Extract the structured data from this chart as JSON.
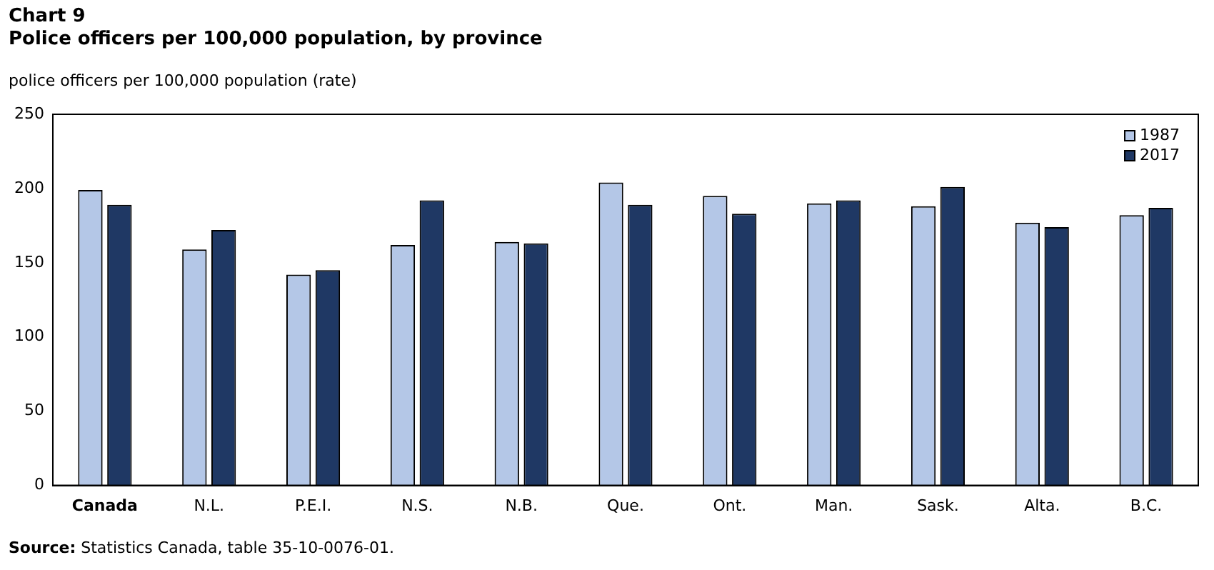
{
  "chart_data": {
    "type": "bar",
    "title": "Chart 9",
    "subtitle": "Police officers per 100,000 population, by province",
    "ylabel": "police officers per 100,000 population (rate)",
    "categories": [
      "Canada",
      "N.L.",
      "P.E.I.",
      "N.S.",
      "N.B.",
      "Que.",
      "Ont.",
      "Man.",
      "Sask.",
      "Alta.",
      "B.C."
    ],
    "series": [
      {
        "name": "1987",
        "color": "#b4c7e7",
        "values": [
          199,
          159,
          142,
          162,
          164,
          204,
          195,
          190,
          188,
          177,
          182
        ]
      },
      {
        "name": "2017",
        "color": "#1f3864",
        "values": [
          189,
          172,
          145,
          192,
          163,
          189,
          183,
          192,
          201,
          174,
          187
        ]
      }
    ],
    "ylim": [
      0,
      250
    ],
    "yticks": [
      0,
      50,
      100,
      150,
      200,
      250
    ],
    "grid": false,
    "legend": "top right",
    "annotations": [
      "Source: Statistics Canada, table 35-10-0076-01."
    ]
  }
}
